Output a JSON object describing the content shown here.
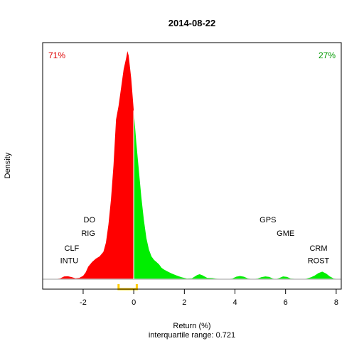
{
  "chart_data": {
    "type": "area",
    "title": "2014-08-22",
    "xlabel": "Return (%)",
    "subtitle": "interquartile range: 0.721",
    "ylabel": "Density",
    "xlim": [
      -3.6,
      8.2
    ],
    "ylim": [
      0,
      1.0
    ],
    "xticks": [
      -2,
      0,
      2,
      4,
      6,
      8
    ],
    "grid": false,
    "split_at": 0,
    "colors": {
      "negative": "#ff0000",
      "positive": "#00ee00",
      "negative_label": "#dd0000",
      "positive_label": "#009900",
      "iqr": "#ffcc00",
      "baseline": "#bebebe"
    },
    "negative_share_label": "71%",
    "positive_share_label": "27%",
    "iqr": {
      "low": -0.6,
      "high": 0.12,
      "value": 0.721
    },
    "density": {
      "x": [
        -3.1,
        -2.9,
        -2.75,
        -2.6,
        -2.45,
        -2.3,
        -2.15,
        -2.0,
        -1.9,
        -1.8,
        -1.65,
        -1.5,
        -1.35,
        -1.2,
        -1.1,
        -1.0,
        -0.9,
        -0.8,
        -0.7,
        -0.6,
        -0.5,
        -0.4,
        -0.3,
        -0.25,
        -0.2,
        -0.15,
        -0.1,
        0.0,
        0.1,
        0.2,
        0.3,
        0.4,
        0.5,
        0.6,
        0.7,
        0.8,
        0.9,
        1.0,
        1.1,
        1.2,
        1.35,
        1.5,
        1.7,
        1.9,
        2.1,
        2.3,
        2.5,
        2.6,
        2.7,
        2.9,
        3.1,
        3.3,
        3.5,
        3.7,
        3.9,
        4.05,
        4.2,
        4.35,
        4.5,
        4.7,
        4.9,
        5.05,
        5.2,
        5.35,
        5.5,
        5.6,
        5.75,
        5.9,
        6.05,
        6.2,
        6.4,
        6.6,
        6.8,
        7.0,
        7.15,
        7.3,
        7.45,
        7.6,
        7.75,
        7.9,
        8.1
      ],
      "y": [
        0.0,
        0.004,
        0.012,
        0.013,
        0.009,
        0.004,
        0.006,
        0.015,
        0.03,
        0.055,
        0.075,
        0.09,
        0.1,
        0.12,
        0.16,
        0.24,
        0.35,
        0.5,
        0.7,
        0.76,
        0.84,
        0.92,
        0.97,
        1.0,
        0.98,
        0.93,
        0.88,
        0.74,
        0.6,
        0.48,
        0.36,
        0.26,
        0.18,
        0.13,
        0.1,
        0.085,
        0.075,
        0.065,
        0.05,
        0.042,
        0.033,
        0.025,
        0.016,
        0.008,
        0.003,
        0.004,
        0.018,
        0.022,
        0.018,
        0.006,
        0.005,
        0.002,
        0.001,
        0.0,
        0.003,
        0.011,
        0.014,
        0.011,
        0.004,
        0.0,
        0.003,
        0.009,
        0.012,
        0.01,
        0.003,
        0.0,
        0.005,
        0.012,
        0.01,
        0.003,
        0.001,
        0.0,
        0.002,
        0.008,
        0.016,
        0.027,
        0.033,
        0.025,
        0.012,
        0.003,
        0.0
      ]
    },
    "annotations": [
      {
        "text": "DO",
        "x": -1.75,
        "y": 0.25
      },
      {
        "text": "RIG",
        "x": -1.8,
        "y": 0.19
      },
      {
        "text": "CLF",
        "x": -2.45,
        "y": 0.125
      },
      {
        "text": "INTU",
        "x": -2.55,
        "y": 0.07
      },
      {
        "text": "GPS",
        "x": 5.3,
        "y": 0.25
      },
      {
        "text": "GME",
        "x": 6.0,
        "y": 0.19
      },
      {
        "text": "CRM",
        "x": 7.3,
        "y": 0.125
      },
      {
        "text": "ROST",
        "x": 7.3,
        "y": 0.07
      }
    ]
  }
}
